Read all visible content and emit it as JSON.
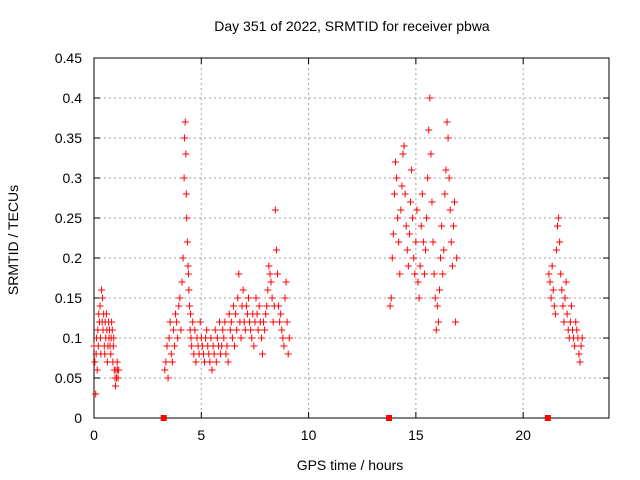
{
  "chart_data": {
    "type": "scatter",
    "title": "Day 351 of 2022, SRMTID for receiver pbwa",
    "xlabel": "GPS time / hours",
    "ylabel": "SRMTID / TECUs",
    "xlim": [
      0,
      24
    ],
    "ylim": [
      0,
      0.45
    ],
    "xticks": [
      0,
      5,
      10,
      15,
      20
    ],
    "xtick_labels": [
      "0",
      "5",
      "10",
      "15",
      "20"
    ],
    "yticks": [
      0,
      0.05,
      0.1,
      0.15,
      0.2,
      0.25,
      0.3,
      0.35,
      0.4,
      0.45
    ],
    "ytick_labels": [
      "0",
      "0.05",
      "0.1",
      "0.15",
      "0.2",
      "0.25",
      "0.3",
      "0.35",
      "0.4",
      "0.45"
    ],
    "grid": true,
    "marker_color": "#ff0000",
    "series": [
      {
        "name": "SRMTID",
        "marker": "plus",
        "x": [
          0.0,
          0.04,
          0.08,
          0.1,
          0.12,
          0.15,
          0.18,
          0.2,
          0.22,
          0.25,
          0.28,
          0.3,
          0.32,
          0.35,
          0.38,
          0.4,
          0.42,
          0.45,
          0.48,
          0.5,
          0.52,
          0.55,
          0.58,
          0.6,
          0.62,
          0.65,
          0.68,
          0.7,
          0.72,
          0.75,
          0.78,
          0.8,
          0.82,
          0.85,
          0.88,
          0.9,
          0.92,
          0.95,
          0.98,
          1.0,
          1.02,
          1.05,
          1.08,
          1.1,
          1.12,
          1.15,
          3.3,
          3.35,
          3.4,
          3.45,
          3.5,
          3.55,
          3.6,
          3.65,
          3.7,
          3.75,
          3.8,
          3.85,
          3.9,
          3.95,
          4.0,
          4.05,
          4.1,
          4.15,
          4.2,
          4.22,
          4.25,
          4.28,
          4.3,
          4.32,
          4.35,
          4.38,
          4.4,
          4.42,
          4.45,
          4.48,
          4.5,
          4.52,
          4.55,
          4.6,
          4.65,
          4.7,
          4.75,
          4.8,
          4.85,
          4.9,
          4.95,
          5.0,
          5.05,
          5.1,
          5.15,
          5.2,
          5.25,
          5.3,
          5.35,
          5.4,
          5.45,
          5.5,
          5.55,
          5.6,
          5.65,
          5.7,
          5.75,
          5.8,
          5.85,
          5.9,
          5.95,
          6.0,
          6.05,
          6.1,
          6.15,
          6.2,
          6.25,
          6.3,
          6.35,
          6.4,
          6.45,
          6.5,
          6.55,
          6.6,
          6.65,
          6.7,
          6.75,
          6.8,
          6.85,
          6.9,
          6.95,
          7.0,
          7.05,
          7.1,
          7.15,
          7.2,
          7.25,
          7.3,
          7.35,
          7.4,
          7.45,
          7.5,
          7.55,
          7.6,
          7.65,
          7.7,
          7.75,
          7.8,
          7.85,
          7.9,
          7.95,
          8.0,
          8.05,
          8.1,
          8.15,
          8.2,
          8.25,
          8.3,
          8.35,
          8.4,
          8.45,
          8.5,
          8.55,
          8.6,
          8.65,
          8.7,
          8.75,
          8.8,
          8.85,
          8.9,
          8.95,
          9.0,
          9.05,
          9.1,
          13.8,
          13.85,
          13.9,
          13.95,
          14.0,
          14.05,
          14.1,
          14.15,
          14.2,
          14.25,
          14.3,
          14.35,
          14.4,
          14.45,
          14.5,
          14.55,
          14.6,
          14.65,
          14.7,
          14.75,
          14.8,
          14.85,
          14.9,
          14.95,
          15.0,
          15.05,
          15.1,
          15.15,
          15.2,
          15.25,
          15.3,
          15.35,
          15.4,
          15.45,
          15.5,
          15.55,
          15.6,
          15.65,
          15.7,
          15.75,
          15.8,
          15.85,
          15.9,
          15.95,
          16.0,
          16.05,
          16.1,
          16.15,
          16.2,
          16.25,
          16.3,
          16.35,
          16.4,
          16.45,
          16.5,
          16.55,
          16.6,
          16.65,
          16.7,
          16.75,
          16.8,
          16.85,
          16.9,
          21.2,
          21.25,
          21.3,
          21.35,
          21.4,
          21.45,
          21.5,
          21.55,
          21.6,
          21.65,
          21.7,
          21.75,
          21.8,
          21.85,
          21.9,
          21.95,
          22.0,
          22.05,
          22.1,
          22.15,
          22.2,
          22.25,
          22.3,
          22.35,
          22.4,
          22.45,
          22.5,
          22.55,
          22.6,
          22.65,
          22.7,
          22.75
        ],
        "y": [
          0.09,
          0.07,
          0.03,
          0.08,
          0.1,
          0.06,
          0.11,
          0.09,
          0.13,
          0.12,
          0.14,
          0.1,
          0.08,
          0.16,
          0.12,
          0.15,
          0.11,
          0.13,
          0.09,
          0.08,
          0.12,
          0.1,
          0.13,
          0.11,
          0.07,
          0.09,
          0.12,
          0.1,
          0.11,
          0.09,
          0.08,
          0.1,
          0.12,
          0.11,
          0.07,
          0.09,
          0.1,
          0.06,
          0.05,
          0.04,
          0.06,
          0.05,
          0.07,
          0.06,
          0.05,
          0.06,
          0.06,
          0.07,
          0.09,
          0.05,
          0.1,
          0.12,
          0.08,
          0.07,
          0.11,
          0.09,
          0.13,
          0.12,
          0.1,
          0.14,
          0.15,
          0.11,
          0.17,
          0.2,
          0.3,
          0.35,
          0.37,
          0.33,
          0.28,
          0.25,
          0.22,
          0.19,
          0.18,
          0.16,
          0.14,
          0.11,
          0.13,
          0.1,
          0.09,
          0.12,
          0.08,
          0.11,
          0.07,
          0.1,
          0.09,
          0.08,
          0.12,
          0.1,
          0.09,
          0.08,
          0.07,
          0.1,
          0.11,
          0.09,
          0.08,
          0.07,
          0.1,
          0.06,
          0.09,
          0.08,
          0.11,
          0.07,
          0.1,
          0.09,
          0.12,
          0.08,
          0.09,
          0.11,
          0.1,
          0.12,
          0.08,
          0.09,
          0.07,
          0.13,
          0.11,
          0.12,
          0.1,
          0.14,
          0.09,
          0.13,
          0.11,
          0.15,
          0.18,
          0.12,
          0.1,
          0.14,
          0.16,
          0.12,
          0.11,
          0.14,
          0.13,
          0.15,
          0.12,
          0.11,
          0.1,
          0.13,
          0.09,
          0.12,
          0.15,
          0.13,
          0.11,
          0.14,
          0.12,
          0.1,
          0.08,
          0.12,
          0.11,
          0.13,
          0.14,
          0.16,
          0.19,
          0.18,
          0.17,
          0.15,
          0.12,
          0.14,
          0.26,
          0.21,
          0.18,
          0.14,
          0.12,
          0.13,
          0.11,
          0.1,
          0.09,
          0.15,
          0.17,
          0.12,
          0.08,
          0.1,
          0.14,
          0.15,
          0.2,
          0.23,
          0.28,
          0.32,
          0.3,
          0.25,
          0.22,
          0.18,
          0.26,
          0.29,
          0.33,
          0.34,
          0.28,
          0.24,
          0.21,
          0.19,
          0.23,
          0.27,
          0.31,
          0.25,
          0.2,
          0.18,
          0.22,
          0.26,
          0.17,
          0.15,
          0.19,
          0.24,
          0.28,
          0.22,
          0.18,
          0.21,
          0.25,
          0.3,
          0.36,
          0.4,
          0.33,
          0.27,
          0.22,
          0.18,
          0.15,
          0.11,
          0.14,
          0.12,
          0.16,
          0.2,
          0.24,
          0.18,
          0.21,
          0.28,
          0.31,
          0.37,
          0.35,
          0.3,
          0.26,
          0.22,
          0.19,
          0.24,
          0.27,
          0.12,
          0.2,
          0.18,
          0.17,
          0.15,
          0.19,
          0.16,
          0.14,
          0.13,
          0.21,
          0.24,
          0.25,
          0.22,
          0.18,
          0.16,
          0.14,
          0.12,
          0.15,
          0.17,
          0.13,
          0.11,
          0.1,
          0.12,
          0.14,
          0.11,
          0.1,
          0.09,
          0.12,
          0.11,
          0.1,
          0.08,
          0.07,
          0.09,
          0.1
        ]
      }
    ],
    "baseline_markers": {
      "name": "zero-markers",
      "marker": "square",
      "x": [
        3.25,
        13.75,
        21.15
      ],
      "y": [
        0,
        0,
        0
      ]
    }
  }
}
